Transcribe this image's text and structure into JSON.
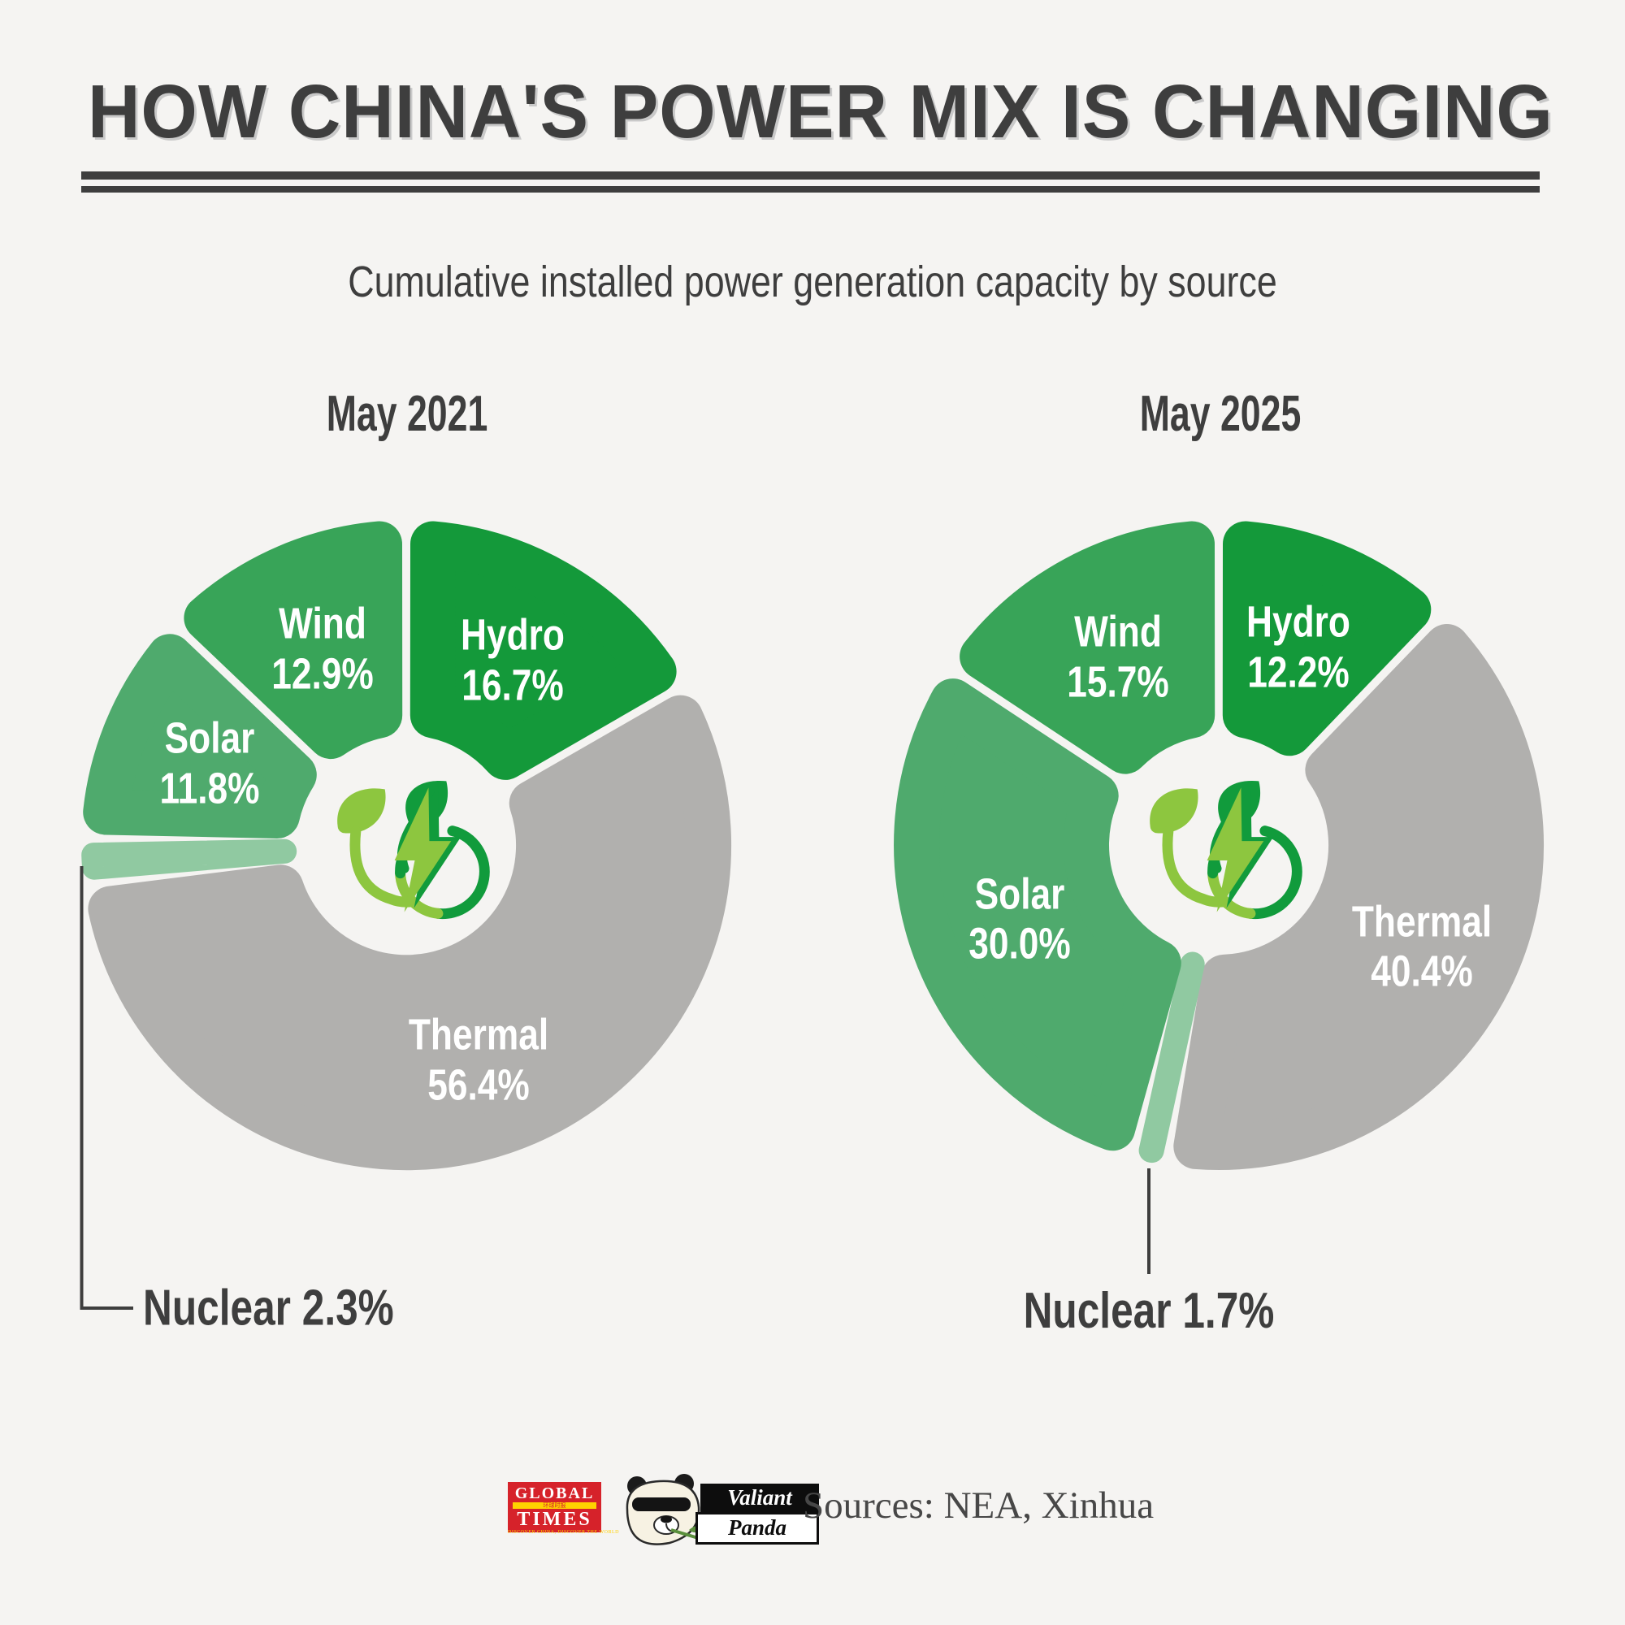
{
  "header": {
    "title": "HOW CHINA'S POWER MIX IS CHANGING",
    "subtitle": "Cumulative installed power generation capacity by source"
  },
  "chart_data": [
    {
      "type": "pie",
      "title": "May 2021",
      "unit": "%",
      "start_angle_deg": 0,
      "direction": "clockwise",
      "categories": [
        "Hydro",
        "Thermal",
        "Nuclear",
        "Solar",
        "Wind"
      ],
      "values": [
        16.7,
        56.4,
        2.3,
        11.8,
        12.9
      ],
      "colors": [
        "#14993a",
        "#b1b0ae",
        "#90c9a1",
        "#4faa6d",
        "#38a458"
      ],
      "center_icon": "green-energy-plug-icon",
      "external_label": "Nuclear 2.3%"
    },
    {
      "type": "pie",
      "title": "May 2025",
      "unit": "%",
      "start_angle_deg": 0,
      "direction": "clockwise",
      "categories": [
        "Hydro",
        "Thermal",
        "Nuclear",
        "Solar",
        "Wind"
      ],
      "values": [
        12.2,
        40.4,
        1.7,
        30.0,
        15.7
      ],
      "colors": [
        "#14993a",
        "#b1b0ae",
        "#90c9a1",
        "#4faa6d",
        "#38a458"
      ],
      "center_icon": "green-energy-plug-icon",
      "external_label": "Nuclear 1.7%"
    }
  ],
  "style_colors": {
    "background": "#f5f4f2",
    "text_dark": "#3e3e3e",
    "segment_label": "#ffffff",
    "icon_lime": "#8dc63f",
    "icon_green": "#119b3c",
    "gt_red": "#d6222a",
    "gt_yellow": "#ffd200"
  },
  "footer": {
    "sources": "Sources: NEA, Xinhua",
    "global_times": {
      "line1": "GLOBAL",
      "cn": "环球时报",
      "line2": "TIMES",
      "tagline": "DISCOVER CHINA, DISCOVER THE WORLD"
    },
    "valiant_panda": {
      "line1": "Valiant",
      "line2": "Panda"
    }
  }
}
